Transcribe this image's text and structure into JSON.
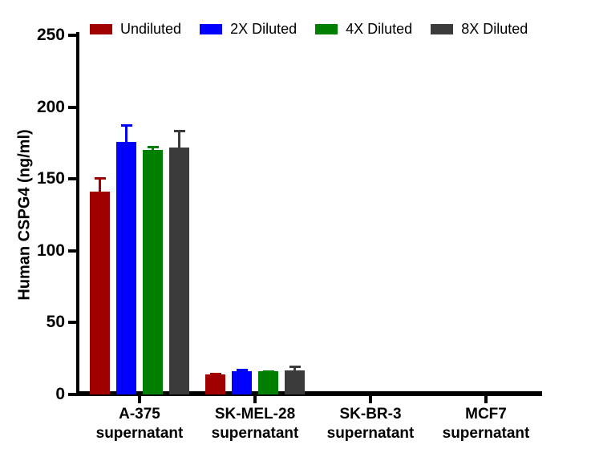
{
  "chart_data": {
    "type": "bar",
    "title": "",
    "xlabel": "",
    "ylabel": "Human CSPG4 (ng/ml)",
    "ylim": [
      0,
      250
    ],
    "yticks": [
      0,
      50,
      100,
      150,
      200,
      250
    ],
    "grid": false,
    "legend_position": "top",
    "error_bars": true,
    "categories": [
      "A-375 supernatant",
      "SK-MEL-28 supernatant",
      "SK-BR-3 supernatant",
      "MCF7 supernatant"
    ],
    "category_lines": [
      [
        "A-375",
        "supernatant"
      ],
      [
        "SK-MEL-28",
        "supernatant"
      ],
      [
        "SK-BR-3",
        "supernatant"
      ],
      [
        "MCF7",
        "supernatant"
      ]
    ],
    "series": [
      {
        "name": "Undiluted",
        "color": "#A00000",
        "values": [
          141,
          14,
          0,
          0
        ],
        "sd": [
          10,
          1,
          0,
          0
        ]
      },
      {
        "name": "2X Diluted",
        "color": "#0000FF",
        "values": [
          176,
          16,
          0,
          0
        ],
        "sd": [
          12,
          2,
          0,
          0
        ]
      },
      {
        "name": "4X Diluted",
        "color": "#008000",
        "values": [
          170,
          16,
          0,
          0
        ],
        "sd": [
          3,
          1,
          0,
          0
        ]
      },
      {
        "name": "8X Diluted",
        "color": "#3B3B3B",
        "values": [
          172,
          17,
          0,
          0
        ],
        "sd": [
          12,
          3,
          0,
          0
        ]
      }
    ],
    "axis_color": "#000000",
    "background_color": "#FFFFFF"
  }
}
